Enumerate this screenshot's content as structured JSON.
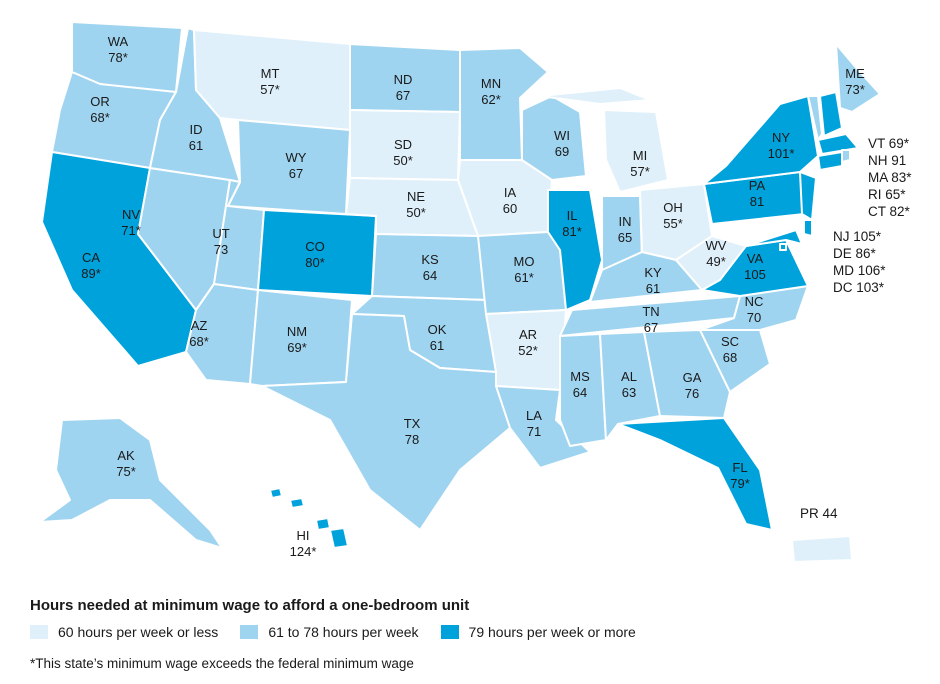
{
  "colors": {
    "low": "#dff0fa",
    "mid": "#9fd4f0",
    "high": "#00a2dc",
    "border": "#ffffff"
  },
  "states": [
    {
      "abbr": "WA",
      "value": "78*",
      "cat": "mid"
    },
    {
      "abbr": "OR",
      "value": "68*",
      "cat": "mid"
    },
    {
      "abbr": "CA",
      "value": "89*",
      "cat": "high"
    },
    {
      "abbr": "NV",
      "value": "71*",
      "cat": "mid"
    },
    {
      "abbr": "ID",
      "value": "61",
      "cat": "mid"
    },
    {
      "abbr": "MT",
      "value": "57*",
      "cat": "low"
    },
    {
      "abbr": "WY",
      "value": "67",
      "cat": "mid"
    },
    {
      "abbr": "UT",
      "value": "73",
      "cat": "mid"
    },
    {
      "abbr": "AZ",
      "value": "68*",
      "cat": "mid"
    },
    {
      "abbr": "CO",
      "value": "80*",
      "cat": "high"
    },
    {
      "abbr": "NM",
      "value": "69*",
      "cat": "mid"
    },
    {
      "abbr": "ND",
      "value": "67",
      "cat": "mid"
    },
    {
      "abbr": "SD",
      "value": "50*",
      "cat": "low"
    },
    {
      "abbr": "NE",
      "value": "50*",
      "cat": "low"
    },
    {
      "abbr": "KS",
      "value": "64",
      "cat": "mid"
    },
    {
      "abbr": "OK",
      "value": "61",
      "cat": "mid"
    },
    {
      "abbr": "TX",
      "value": "78",
      "cat": "mid"
    },
    {
      "abbr": "MN",
      "value": "62*",
      "cat": "mid"
    },
    {
      "abbr": "IA",
      "value": "60",
      "cat": "low"
    },
    {
      "abbr": "MO",
      "value": "61*",
      "cat": "mid"
    },
    {
      "abbr": "AR",
      "value": "52*",
      "cat": "low"
    },
    {
      "abbr": "LA",
      "value": "71",
      "cat": "mid"
    },
    {
      "abbr": "WI",
      "value": "69",
      "cat": "mid"
    },
    {
      "abbr": "IL",
      "value": "81*",
      "cat": "high"
    },
    {
      "abbr": "MI",
      "value": "57*",
      "cat": "low"
    },
    {
      "abbr": "IN",
      "value": "65",
      "cat": "mid"
    },
    {
      "abbr": "OH",
      "value": "55*",
      "cat": "low"
    },
    {
      "abbr": "KY",
      "value": "61",
      "cat": "mid"
    },
    {
      "abbr": "TN",
      "value": "67",
      "cat": "mid"
    },
    {
      "abbr": "MS",
      "value": "64",
      "cat": "mid"
    },
    {
      "abbr": "AL",
      "value": "63",
      "cat": "mid"
    },
    {
      "abbr": "GA",
      "value": "76",
      "cat": "mid"
    },
    {
      "abbr": "FL",
      "value": "79*",
      "cat": "high"
    },
    {
      "abbr": "SC",
      "value": "68",
      "cat": "mid"
    },
    {
      "abbr": "NC",
      "value": "70",
      "cat": "mid"
    },
    {
      "abbr": "VA",
      "value": "105",
      "cat": "high"
    },
    {
      "abbr": "WV",
      "value": "49*",
      "cat": "low"
    },
    {
      "abbr": "PA",
      "value": "81",
      "cat": "high"
    },
    {
      "abbr": "NY",
      "value": "101*",
      "cat": "high"
    },
    {
      "abbr": "ME",
      "value": "73*",
      "cat": "mid"
    },
    {
      "abbr": "AK",
      "value": "75*",
      "cat": "mid"
    },
    {
      "abbr": "HI",
      "value": "124*",
      "cat": "high"
    }
  ],
  "small_states": [
    {
      "abbr": "VT",
      "value": "69*",
      "cat": "mid"
    },
    {
      "abbr": "NH",
      "value": "91",
      "cat": "high"
    },
    {
      "abbr": "MA",
      "value": "83*",
      "cat": "high"
    },
    {
      "abbr": "RI",
      "value": "65*",
      "cat": "mid"
    },
    {
      "abbr": "CT",
      "value": "82*",
      "cat": "high"
    },
    {
      "abbr": "NJ",
      "value": "105*",
      "cat": "high"
    },
    {
      "abbr": "DE",
      "value": "86*",
      "cat": "high"
    },
    {
      "abbr": "MD",
      "value": "106*",
      "cat": "high"
    },
    {
      "abbr": "DC",
      "value": "103*",
      "cat": "high"
    }
  ],
  "pr": {
    "abbr": "PR",
    "value": "44",
    "cat": "low"
  },
  "legend": {
    "title": "Hours needed at minimum wage to afford a one-bedroom unit",
    "items": [
      {
        "label": "60 hours per week or less",
        "cat": "low"
      },
      {
        "label": "61 to 78 hours per week",
        "cat": "mid"
      },
      {
        "label": "79 hours per week or more",
        "cat": "high"
      }
    ]
  },
  "footnote": "*This state’s minimum wage exceeds the federal minimum wage"
}
